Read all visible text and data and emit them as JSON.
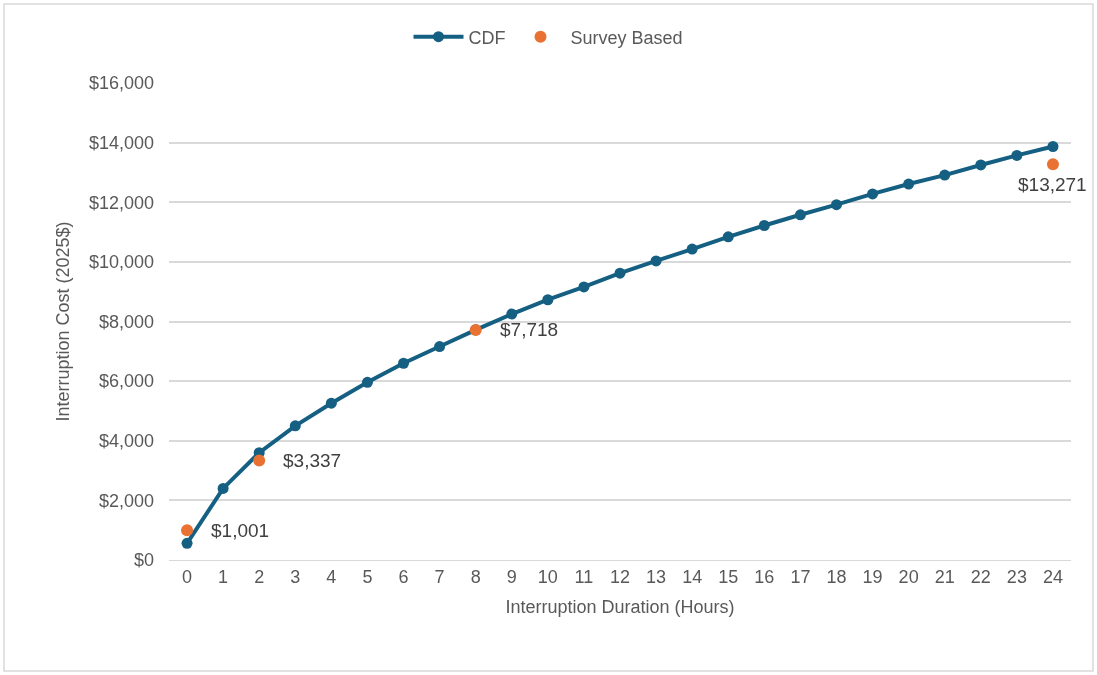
{
  "chart_data": {
    "type": "line",
    "xlabel": "Interruption Duration (Hours)",
    "ylabel": "Interruption Cost (2025$)",
    "x": [
      0,
      1,
      2,
      3,
      4,
      5,
      6,
      7,
      8,
      9,
      10,
      11,
      12,
      13,
      14,
      15,
      16,
      17,
      18,
      19,
      20,
      21,
      22,
      23,
      24
    ],
    "xlim": [
      -0.5,
      24.5
    ],
    "xticks": [
      0,
      1,
      2,
      3,
      4,
      5,
      6,
      7,
      8,
      9,
      10,
      11,
      12,
      13,
      14,
      15,
      16,
      17,
      18,
      19,
      20,
      21,
      22,
      23,
      24
    ],
    "ylim": [
      0,
      16000
    ],
    "yticks": [
      {
        "value": 0,
        "label": "$0"
      },
      {
        "value": 2000,
        "label": "$2,000"
      },
      {
        "value": 4000,
        "label": "$4,000"
      },
      {
        "value": 6000,
        "label": "$6,000"
      },
      {
        "value": 8000,
        "label": "$8,000"
      },
      {
        "value": 10000,
        "label": "$10,000"
      },
      {
        "value": 12000,
        "label": "$12,000"
      },
      {
        "value": 14000,
        "label": "$14,000"
      },
      {
        "value": 16000,
        "label": "$16,000"
      }
    ],
    "grid": "y",
    "legend": "top",
    "marker": "circle",
    "line_style": "solid",
    "series": [
      {
        "name": "CDF",
        "color": "#156082",
        "values": [
          560,
          2400,
          3600,
          4500,
          5260,
          5960,
          6600,
          7160,
          7720,
          8250,
          8730,
          9160,
          9620,
          10030,
          10430,
          10840,
          11220,
          11580,
          11920,
          12280,
          12610,
          12910,
          13250,
          13570,
          13870
        ]
      },
      {
        "name": "Survey Based",
        "type": "scatter",
        "color": "#e97132",
        "x": [
          0,
          2,
          8,
          24
        ],
        "values": [
          1001,
          3337,
          7718,
          13271
        ],
        "value_labels": [
          "$1,001",
          "$3,337",
          "$7,718",
          "$13,271"
        ]
      }
    ]
  }
}
